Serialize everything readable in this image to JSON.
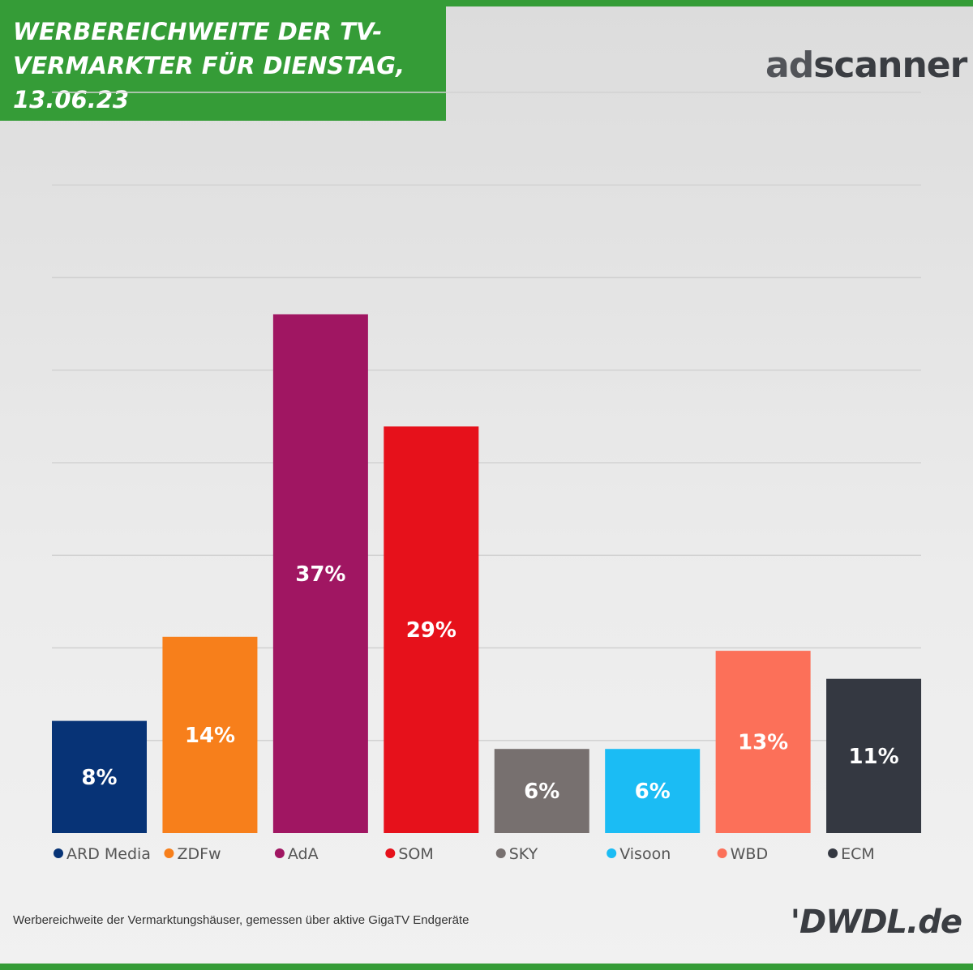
{
  "header": {
    "title": "WERBEREICHWEITE DER TV-VERMARKTER FÜR DIENSTAG, 13.06.23"
  },
  "logos": {
    "adscanner_ad": "ad",
    "adscanner_rest": "scanner",
    "dwdl": "'DWDL.de"
  },
  "footnote": "Werbereichweite der Vermarktungshäuser, gemessen über aktive GigaTV Endgeräte",
  "chart_data": {
    "type": "bar",
    "title": "WERBEREICHWEITE DER TV-VERMARKTER FÜR DIENSTAG, 13.06.23",
    "categories": [
      "ARD Media",
      "ZDFw",
      "AdA",
      "SOM",
      "SKY",
      "Visoon",
      "WBD",
      "ECM"
    ],
    "values": [
      8,
      14,
      37,
      29,
      6,
      6,
      13,
      11
    ],
    "labels": [
      "8%",
      "14%",
      "37%",
      "29%",
      "6%",
      "6%",
      "13%",
      "11%"
    ],
    "colors": [
      "#073376",
      "#f77f1b",
      "#a01662",
      "#e6111b",
      "#77706f",
      "#1bbcf4",
      "#fc7059",
      "#343841"
    ],
    "ylim": [
      0,
      40
    ],
    "grid": true,
    "legend": "bottom"
  }
}
